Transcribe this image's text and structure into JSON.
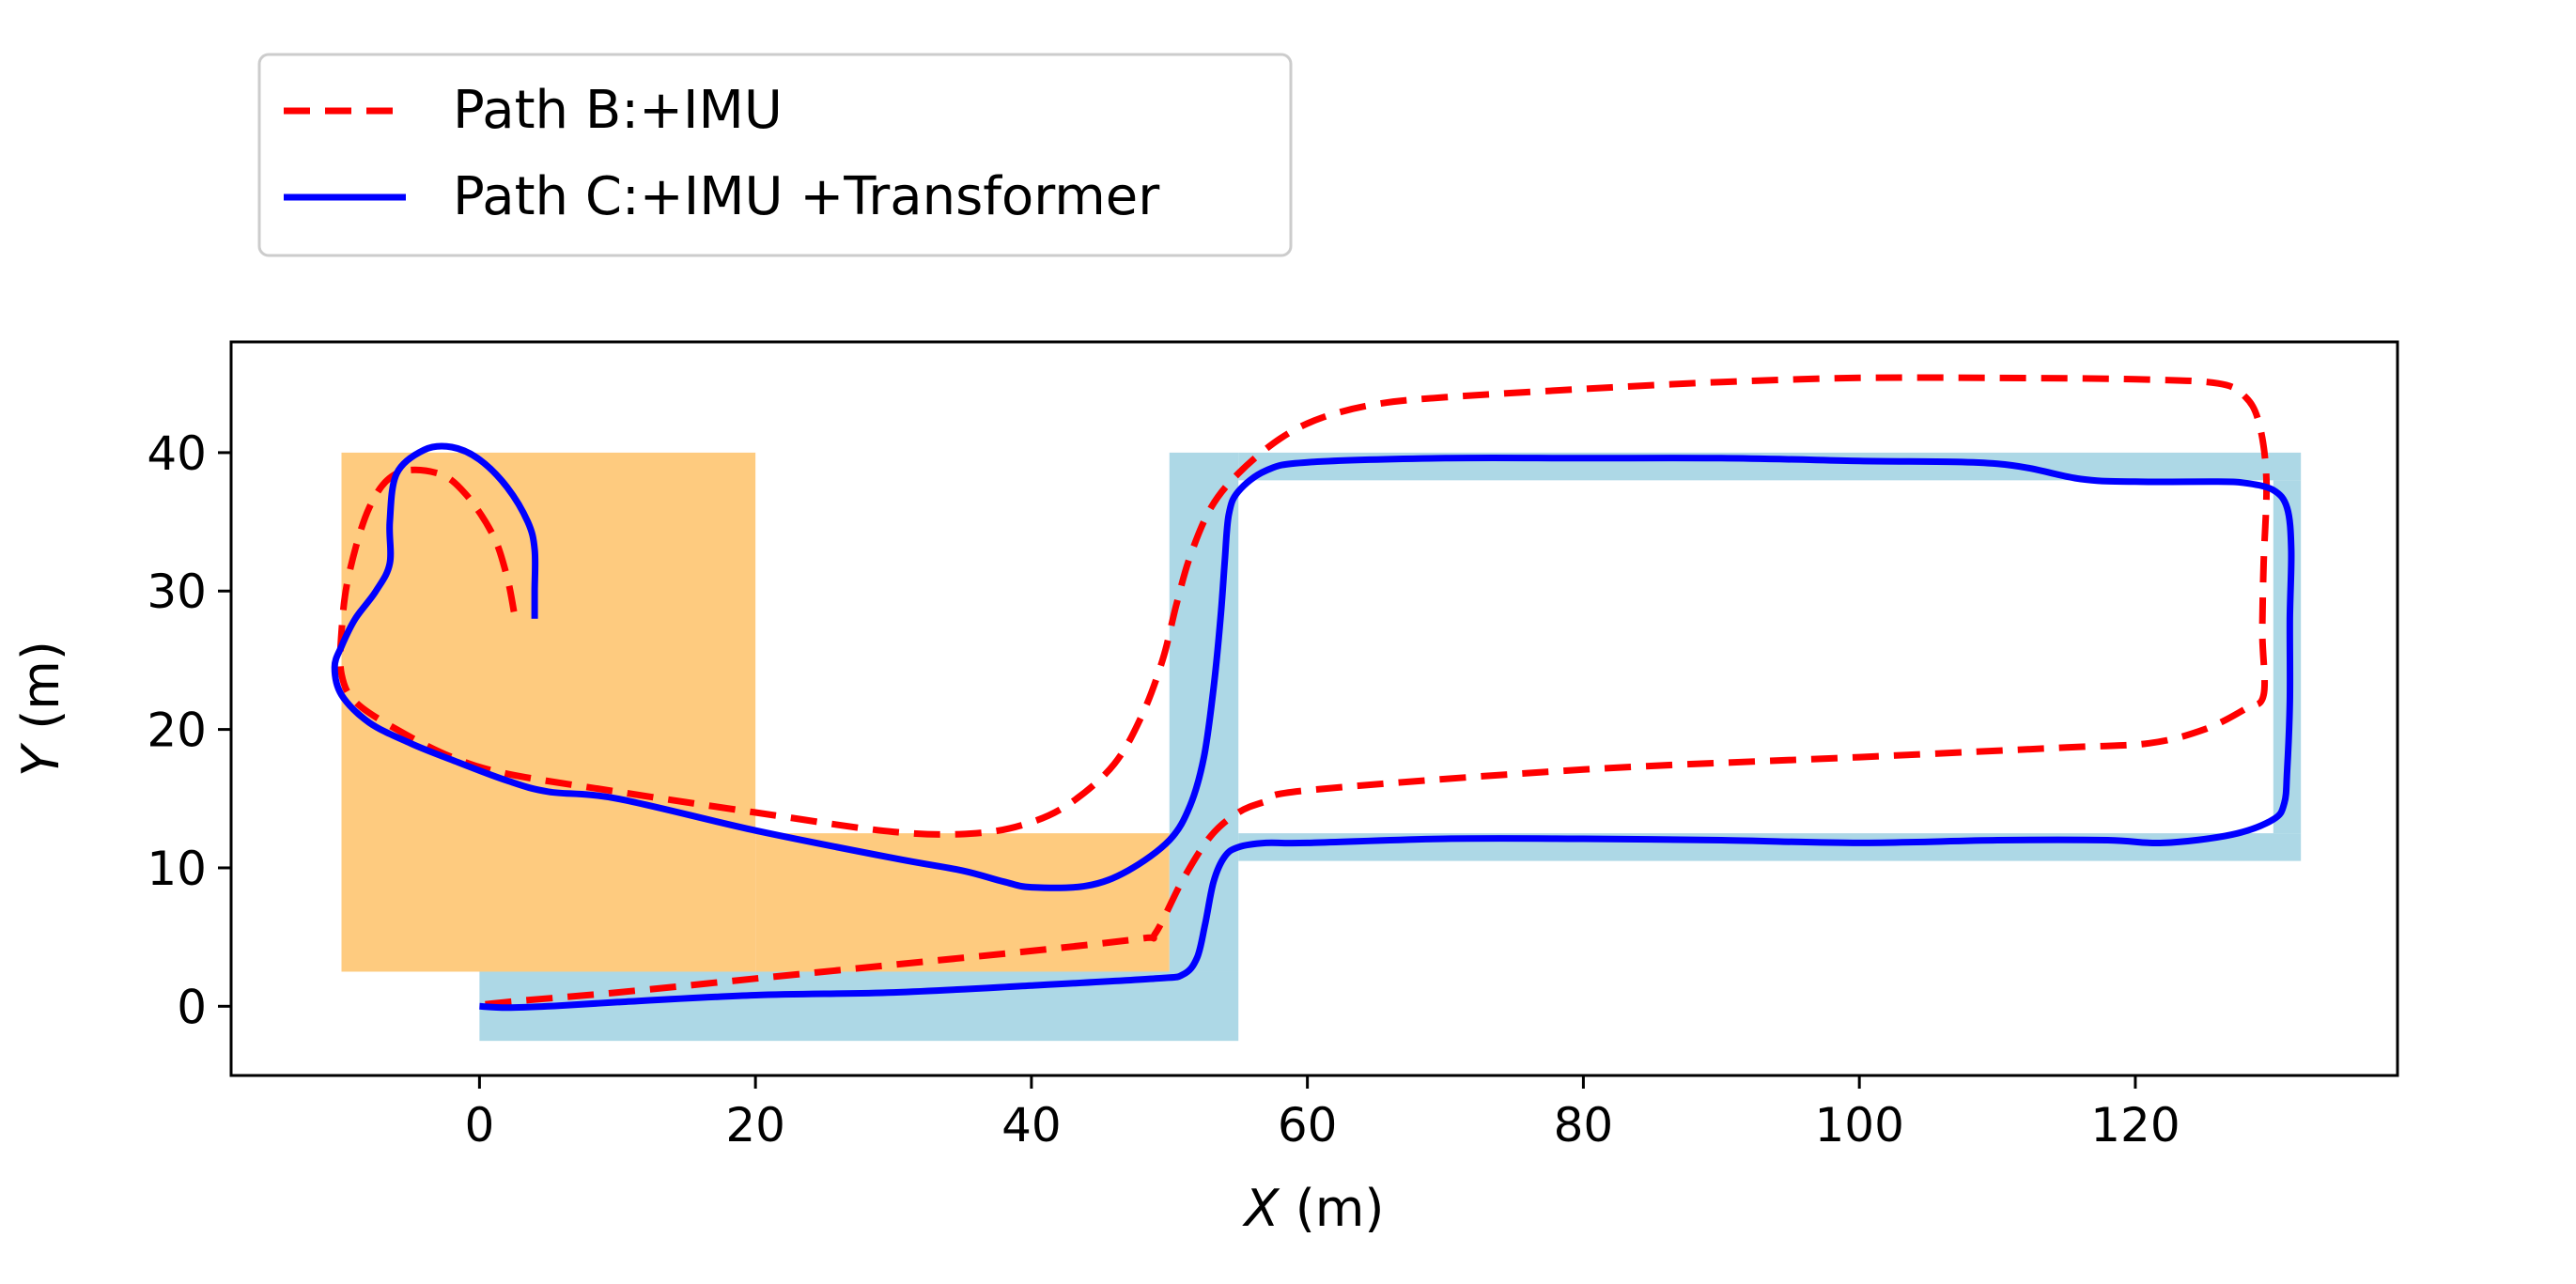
{
  "chart_data": {
    "type": "line",
    "xlabel": {
      "var": "X",
      "unit": " (m)"
    },
    "ylabel": {
      "var": "Y",
      "unit": " (m)"
    },
    "xlim": [
      -18,
      139
    ],
    "ylim": [
      -5,
      48
    ],
    "x_ticks": [
      0,
      20,
      40,
      60,
      80,
      100,
      120
    ],
    "y_ticks": [
      0,
      10,
      20,
      30,
      40
    ],
    "grid": false,
    "legend_placement": "top-left, outside plot",
    "regions": [
      {
        "color": "#FECB7F",
        "x": [
          -10,
          20
        ],
        "y": [
          2.5,
          40
        ]
      },
      {
        "color": "#FECB7F",
        "x": [
          20,
          50
        ],
        "y": [
          2.5,
          12.5
        ]
      },
      {
        "color": "#ADD8E6",
        "x": [
          0,
          55
        ],
        "y": [
          -2.5,
          2.5
        ]
      },
      {
        "color": "#ADD8E6",
        "x": [
          50,
          55
        ],
        "y": [
          2.5,
          40
        ]
      },
      {
        "color": "#ADD8E6",
        "x": [
          55,
          132
        ],
        "y": [
          38,
          40
        ]
      },
      {
        "color": "#ADD8E6",
        "x": [
          130,
          132
        ],
        "y": [
          12.5,
          38
        ]
      },
      {
        "color": "#ADD8E6",
        "x": [
          55,
          132
        ],
        "y": [
          10.5,
          12.5
        ]
      }
    ],
    "series": [
      {
        "name": "Path B:+IMU",
        "color": "#FF0000",
        "style": "dashed",
        "points": [
          [
            2.5,
            28.5
          ],
          [
            2,
            31
          ],
          [
            1,
            34
          ],
          [
            -1,
            37
          ],
          [
            -3,
            38.5
          ],
          [
            -6,
            38.5
          ],
          [
            -8,
            36
          ],
          [
            -9.5,
            31
          ],
          [
            -10,
            27
          ],
          [
            -10,
            24
          ],
          [
            -9,
            22
          ],
          [
            -6,
            20
          ],
          [
            -2,
            18
          ],
          [
            2,
            16.8
          ],
          [
            10,
            15.5
          ],
          [
            20,
            14
          ],
          [
            30,
            12.6
          ],
          [
            36,
            12.5
          ],
          [
            40,
            13.3
          ],
          [
            43,
            14.8
          ],
          [
            46,
            17.5
          ],
          [
            48,
            21
          ],
          [
            49.5,
            25
          ],
          [
            50.5,
            29
          ],
          [
            51.5,
            32.5
          ],
          [
            53,
            36
          ],
          [
            55,
            38.5
          ],
          [
            58,
            41
          ],
          [
            61,
            42.5
          ],
          [
            65,
            43.5
          ],
          [
            70,
            44
          ],
          [
            80,
            44.6
          ],
          [
            90,
            45.1
          ],
          [
            100,
            45.4
          ],
          [
            110,
            45.4
          ],
          [
            120,
            45.3
          ],
          [
            126,
            45
          ],
          [
            128,
            44
          ],
          [
            129,
            42
          ],
          [
            129.5,
            38
          ],
          [
            129.3,
            32
          ],
          [
            129.2,
            27
          ],
          [
            129.3,
            22.5
          ],
          [
            128,
            21.5
          ],
          [
            125,
            20
          ],
          [
            121,
            19
          ],
          [
            115,
            18.7
          ],
          [
            100,
            18
          ],
          [
            80,
            17.1
          ],
          [
            60,
            15.6
          ],
          [
            57,
            14.8
          ],
          [
            55,
            14
          ],
          [
            53,
            12.3
          ],
          [
            51,
            9.2
          ],
          [
            49,
            5.3
          ],
          [
            48,
            4.9
          ],
          [
            40,
            4
          ],
          [
            30,
            3
          ],
          [
            20,
            2
          ],
          [
            10,
            1
          ],
          [
            3,
            0.4
          ],
          [
            0,
            0.1
          ]
        ]
      },
      {
        "name": "Path C:+IMU +Transformer",
        "color": "#0000FF",
        "style": "solid",
        "points": [
          [
            4,
            28
          ],
          [
            4,
            30
          ],
          [
            4,
            33
          ],
          [
            3.5,
            35
          ],
          [
            2,
            37.5
          ],
          [
            0,
            39.5
          ],
          [
            -2,
            40.4
          ],
          [
            -4,
            40.2
          ],
          [
            -6,
            38.5
          ],
          [
            -6.5,
            35
          ],
          [
            -6.5,
            32
          ],
          [
            -7.5,
            30
          ],
          [
            -9,
            28
          ],
          [
            -10,
            26
          ],
          [
            -10.5,
            24.5
          ],
          [
            -10,
            22.5
          ],
          [
            -8,
            20.5
          ],
          [
            -5,
            19
          ],
          [
            -2,
            17.8
          ],
          [
            2,
            16.3
          ],
          [
            5,
            15.5
          ],
          [
            10,
            15
          ],
          [
            20,
            12.7
          ],
          [
            30,
            10.7
          ],
          [
            35,
            9.8
          ],
          [
            38,
            9
          ],
          [
            40,
            8.6
          ],
          [
            44,
            8.7
          ],
          [
            47,
            9.8
          ],
          [
            50,
            12
          ],
          [
            51.5,
            14.5
          ],
          [
            52.5,
            18
          ],
          [
            53.2,
            23
          ],
          [
            53.7,
            28
          ],
          [
            54,
            32
          ],
          [
            54.3,
            35.5
          ],
          [
            55,
            37.2
          ],
          [
            57,
            38.7
          ],
          [
            60,
            39.3
          ],
          [
            70,
            39.6
          ],
          [
            80,
            39.6
          ],
          [
            90,
            39.6
          ],
          [
            100,
            39.4
          ],
          [
            110,
            39.2
          ],
          [
            116,
            38.1
          ],
          [
            120,
            37.9
          ],
          [
            126,
            37.9
          ],
          [
            128,
            37.8
          ],
          [
            130,
            37.3
          ],
          [
            131,
            36
          ],
          [
            131.3,
            33
          ],
          [
            131.2,
            28
          ],
          [
            131.2,
            22
          ],
          [
            131,
            17
          ],
          [
            130.8,
            14.7
          ],
          [
            130,
            13.5
          ],
          [
            127,
            12.4
          ],
          [
            122,
            11.8
          ],
          [
            118,
            12
          ],
          [
            110,
            12
          ],
          [
            100,
            11.8
          ],
          [
            90,
            12
          ],
          [
            80,
            12.1
          ],
          [
            70,
            12.1
          ],
          [
            60,
            11.8
          ],
          [
            57,
            11.8
          ],
          [
            55,
            11.5
          ],
          [
            54,
            10.8
          ],
          [
            53.2,
            9
          ],
          [
            52.6,
            6
          ],
          [
            52,
            3.5
          ],
          [
            51,
            2.3
          ],
          [
            49,
            2
          ],
          [
            40,
            1.5
          ],
          [
            30,
            1
          ],
          [
            20,
            0.8
          ],
          [
            10,
            0.3
          ],
          [
            5,
            0
          ],
          [
            2,
            -0.1
          ],
          [
            0,
            0
          ]
        ]
      }
    ]
  }
}
